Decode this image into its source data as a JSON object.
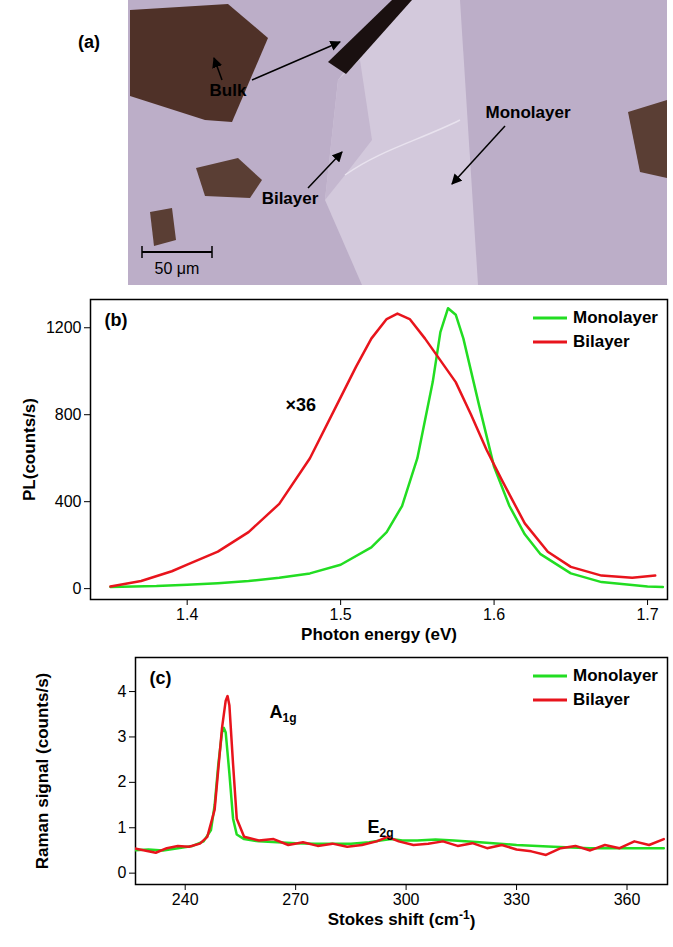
{
  "chart_data": [
    {
      "type": "image",
      "title": "(a)",
      "annotations": [
        "Bulk",
        "Bilayer",
        "Monolayer"
      ],
      "scale_bar": "50 μm"
    },
    {
      "type": "line",
      "title": "(b)",
      "xlabel": "Photon energy (eV)",
      "ylabel": "PL(counts/s)",
      "xlim": [
        1.337,
        1.713
      ],
      "xticks": [
        1.4,
        1.5,
        1.6,
        1.7
      ],
      "ylim": [
        -50,
        1330
      ],
      "yticks": [
        0,
        400,
        800,
        1200
      ],
      "legend": "top-right",
      "annotations": [
        "×36"
      ],
      "series": [
        {
          "name": "Monolayer",
          "color": "#22dd22",
          "x": [
            1.35,
            1.38,
            1.4,
            1.42,
            1.44,
            1.46,
            1.48,
            1.5,
            1.52,
            1.53,
            1.54,
            1.55,
            1.56,
            1.565,
            1.57,
            1.575,
            1.58,
            1.59,
            1.6,
            1.61,
            1.62,
            1.63,
            1.65,
            1.67,
            1.7,
            1.71
          ],
          "values": [
            8,
            12,
            18,
            25,
            35,
            50,
            70,
            110,
            190,
            260,
            380,
            600,
            950,
            1180,
            1290,
            1260,
            1150,
            850,
            560,
            380,
            250,
            160,
            70,
            30,
            10,
            8
          ]
        },
        {
          "name": "Bilayer",
          "color": "#e8141c",
          "x": [
            1.35,
            1.37,
            1.39,
            1.4,
            1.42,
            1.44,
            1.46,
            1.48,
            1.5,
            1.51,
            1.52,
            1.53,
            1.537,
            1.545,
            1.555,
            1.565,
            1.575,
            1.585,
            1.595,
            1.605,
            1.62,
            1.635,
            1.65,
            1.67,
            1.69,
            1.705
          ],
          "values": [
            10,
            35,
            80,
            110,
            170,
            260,
            390,
            600,
            880,
            1020,
            1150,
            1240,
            1265,
            1240,
            1150,
            1050,
            950,
            800,
            640,
            500,
            300,
            170,
            100,
            60,
            50,
            60
          ]
        }
      ]
    },
    {
      "type": "line",
      "title": "(c)",
      "xlabel": "Stokes shift (cm-1)",
      "ylabel": "Raman signal (counts/s)",
      "xlim": [
        226.5,
        371
      ],
      "xticks": [
        240,
        270,
        300,
        330,
        360
      ],
      "ylim": [
        -0.25,
        4.75
      ],
      "yticks": [
        0,
        1,
        2,
        3,
        4
      ],
      "legend": "top-right",
      "annotations": [
        "A1g",
        "E2g"
      ],
      "series": [
        {
          "name": "Monolayer",
          "color": "#22dd22",
          "x": [
            226,
            230,
            234,
            238,
            242,
            245,
            247,
            248,
            249,
            250,
            250.5,
            251,
            252,
            253,
            254,
            256,
            260,
            265,
            270,
            275,
            280,
            285,
            290,
            293,
            296,
            299,
            303,
            308,
            313,
            320,
            330,
            340,
            350,
            360,
            370
          ],
          "values": [
            0.5,
            0.52,
            0.5,
            0.55,
            0.6,
            0.7,
            0.95,
            1.5,
            2.4,
            3.1,
            3.2,
            3.1,
            2.2,
            1.2,
            0.85,
            0.75,
            0.7,
            0.68,
            0.66,
            0.65,
            0.65,
            0.65,
            0.68,
            0.72,
            0.75,
            0.72,
            0.72,
            0.74,
            0.72,
            0.68,
            0.62,
            0.58,
            0.55,
            0.55,
            0.55
          ]
        },
        {
          "name": "Bilayer",
          "color": "#e8141c",
          "x": [
            226,
            229,
            232,
            235,
            238,
            241,
            244,
            246,
            248,
            249,
            250,
            251,
            251.5,
            252,
            253,
            254,
            256,
            260,
            264,
            268,
            272,
            276,
            280,
            284,
            288,
            292,
            295,
            298,
            302,
            306,
            310,
            314,
            318,
            322,
            326,
            330,
            334,
            338,
            342,
            346,
            350,
            354,
            358,
            362,
            366,
            370
          ],
          "values": [
            0.55,
            0.5,
            0.45,
            0.55,
            0.6,
            0.58,
            0.65,
            0.8,
            1.4,
            2.3,
            3.2,
            3.8,
            3.9,
            3.7,
            2.4,
            1.2,
            0.8,
            0.72,
            0.75,
            0.62,
            0.68,
            0.6,
            0.65,
            0.58,
            0.62,
            0.7,
            0.8,
            0.7,
            0.62,
            0.65,
            0.7,
            0.6,
            0.66,
            0.55,
            0.62,
            0.52,
            0.48,
            0.4,
            0.55,
            0.6,
            0.5,
            0.62,
            0.55,
            0.7,
            0.62,
            0.75
          ]
        }
      ]
    }
  ]
}
